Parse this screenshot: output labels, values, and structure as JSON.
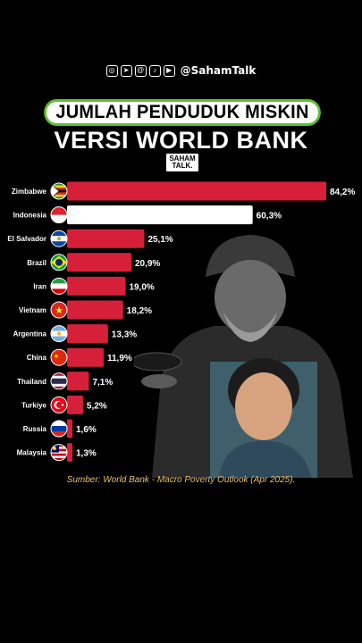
{
  "header": {
    "handle": "@SahamTalk",
    "social_icons": [
      "instagram-icon",
      "telegram-icon",
      "threads-icon",
      "tiktok-icon",
      "youtube-icon"
    ],
    "title": "JUMLAH PENDUDUK MISKIN",
    "subtitle": "VERSI WORLD BANK",
    "badge_line1": "SAHAM",
    "badge_line2": "TALK."
  },
  "colors": {
    "bar": "#d6203a",
    "highlight_bar": "#ffffff",
    "title_border": "#5fbf2e",
    "source_text": "#e7c373"
  },
  "chart_data": {
    "type": "bar",
    "orientation": "horizontal",
    "categories": [
      "Zimbabwe",
      "Indonesia",
      "El Salvador",
      "Brazil",
      "Iran",
      "Vietnam",
      "Argentina",
      "China",
      "Thailand",
      "Turkiye",
      "Russia",
      "Malaysia"
    ],
    "values": [
      84.2,
      60.3,
      25.1,
      20.9,
      19.0,
      18.2,
      13.3,
      11.9,
      7.1,
      5.2,
      1.6,
      1.3
    ],
    "value_labels": [
      "84,2%",
      "60,3%",
      "25,1%",
      "20,9%",
      "19,0%",
      "18,2%",
      "13,3%",
      "11,9%",
      "7,1%",
      "5,2%",
      "1,6%",
      "1,3%"
    ],
    "highlight": "Indonesia",
    "unit": "%",
    "title": "JUMLAH PENDUDUK MISKIN",
    "xlabel": "",
    "ylabel": "",
    "xlim": [
      0,
      84.2
    ],
    "grid": false
  },
  "source": "Sumber: World Bank - Macro Poverty Outlook (Apr 2025)."
}
